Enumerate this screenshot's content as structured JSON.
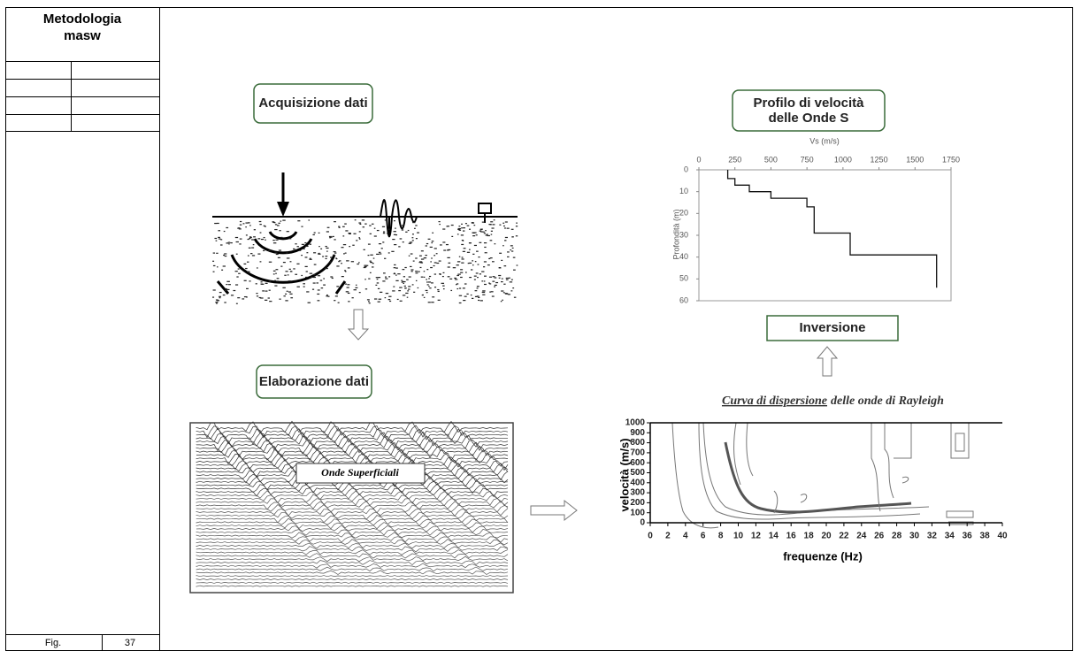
{
  "sidebar": {
    "title": "Metodologia masw",
    "figure_label": "Fig.",
    "figure_number": "37"
  },
  "figure": {
    "acquisition": "Acquisizione dati",
    "processing": "Elaborazione dati",
    "inversion": "Inversione",
    "surface_waves": "Onde Superficiali",
    "profile": {
      "type": "line",
      "title_lines": [
        "Profilo di velocità",
        "delle Onde S"
      ],
      "x_label": "Vs (m/s)",
      "y_label": "Profondità (m)",
      "xlim": [
        0,
        1750
      ],
      "xticks": [
        0,
        250,
        500,
        750,
        1000,
        1250,
        1500,
        1750
      ],
      "ylim": [
        0,
        60
      ],
      "yticks": [
        0,
        10,
        20,
        30,
        40,
        50,
        60
      ],
      "vs": [
        200,
        200,
        250,
        250,
        350,
        350,
        500,
        500,
        750,
        750,
        800,
        800,
        1050,
        1050,
        1650,
        1650
      ],
      "depth": [
        0,
        4,
        4,
        7,
        7,
        10,
        10,
        13,
        13,
        17,
        17,
        29,
        29,
        39,
        39,
        54
      ]
    },
    "dispersion": {
      "title_underlined": "Curva di dispersione",
      "title_rest": "delle onde di Rayleigh",
      "y_label": "velocità (m/s)",
      "x_label": "frequenze (Hz)",
      "ylim": [
        0,
        1000
      ],
      "yticks": [
        0,
        100,
        200,
        300,
        400,
        500,
        600,
        700,
        800,
        900,
        1000
      ],
      "xlim": [
        0,
        40
      ],
      "xticks": [
        0,
        2,
        4,
        6,
        8,
        10,
        12,
        14,
        16,
        18,
        20,
        22,
        24,
        26,
        28,
        30,
        32,
        34,
        36,
        38,
        40
      ]
    }
  }
}
